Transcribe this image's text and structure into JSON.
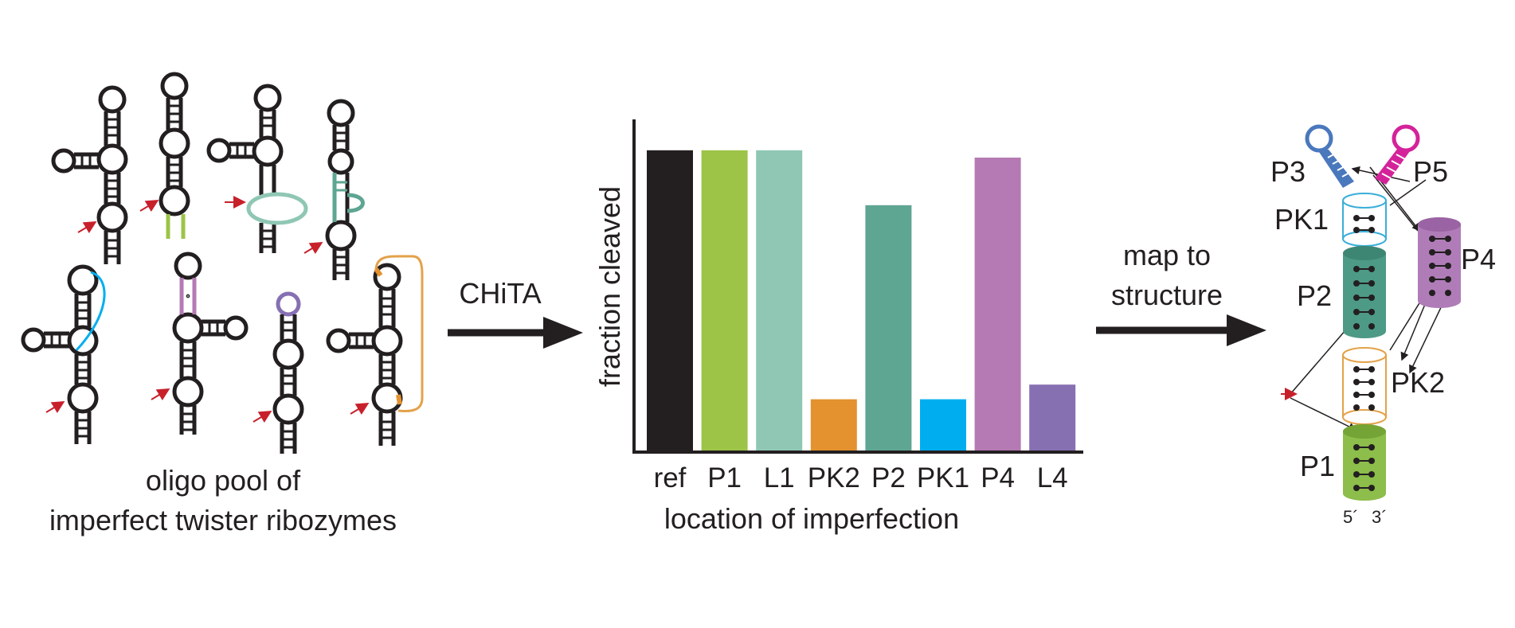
{
  "left_panel": {
    "caption_line1": "oligo pool of",
    "caption_line2": "imperfect twister ribozymes"
  },
  "arrow1": {
    "label": "CHiTA"
  },
  "arrow2": {
    "label_line1": "map to",
    "label_line2": "structure"
  },
  "chart_data": {
    "type": "bar",
    "categories": [
      "ref",
      "P1",
      "L1",
      "PK2",
      "P2",
      "PK1",
      "P4",
      "L4"
    ],
    "values": [
      0.82,
      0.82,
      0.82,
      0.14,
      0.67,
      0.14,
      0.8,
      0.18
    ],
    "ylim": [
      0,
      1
    ],
    "ylabel": "fraction cleaved",
    "xlabel": "location of imperfection",
    "colors": [
      "#231f20",
      "#9dc447",
      "#8fc7b4",
      "#e3922f",
      "#5ea592",
      "#00aeef",
      "#b57ab4",
      "#8670b2"
    ],
    "grid": false,
    "legend": "none"
  },
  "structure": {
    "labels": {
      "P3": "P3",
      "P5": "P5",
      "PK1": "PK1",
      "P2": "P2",
      "P4": "P4",
      "PK2": "PK2",
      "P1": "P1",
      "five_prime": "5´",
      "three_prime": "3´"
    },
    "colors": {
      "P3": "#4a78bd",
      "P5": "#d4239a",
      "PK1": "#3aaed8",
      "P2": "#4d9a86",
      "P4": "#b07cb8",
      "PK2": "#e3a24a",
      "P1": "#8dbd4a"
    }
  }
}
